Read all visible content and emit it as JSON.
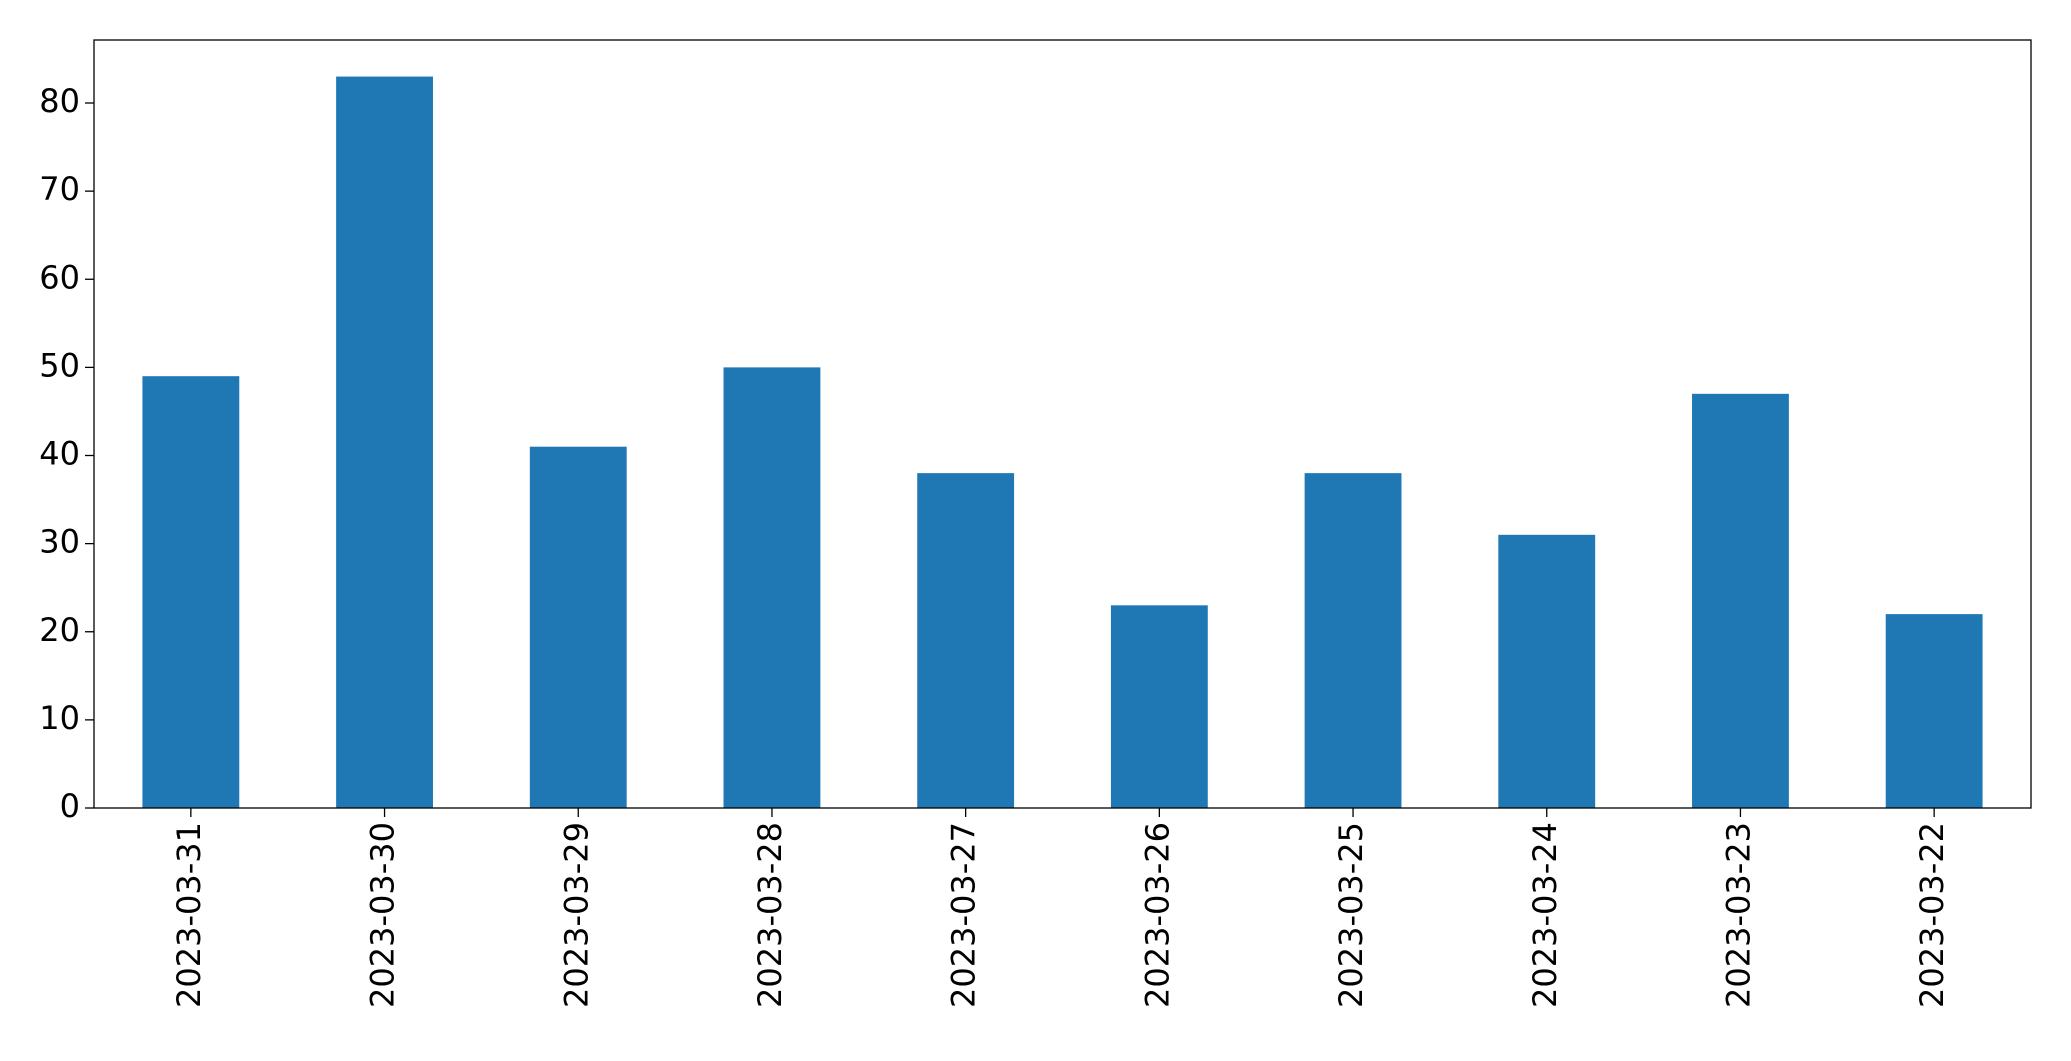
{
  "chart_data": {
    "type": "bar",
    "categories": [
      "2023-03-31",
      "2023-03-30",
      "2023-03-29",
      "2023-03-28",
      "2023-03-27",
      "2023-03-26",
      "2023-03-25",
      "2023-03-24",
      "2023-03-23",
      "2023-03-22"
    ],
    "values": [
      49,
      83,
      41,
      50,
      38,
      23,
      38,
      31,
      47,
      22
    ],
    "color": "#1f77b4",
    "ylim": [
      0,
      87.15
    ],
    "yticks": [
      0,
      10,
      20,
      30,
      40,
      50,
      60,
      70,
      80
    ],
    "grid": false
  }
}
